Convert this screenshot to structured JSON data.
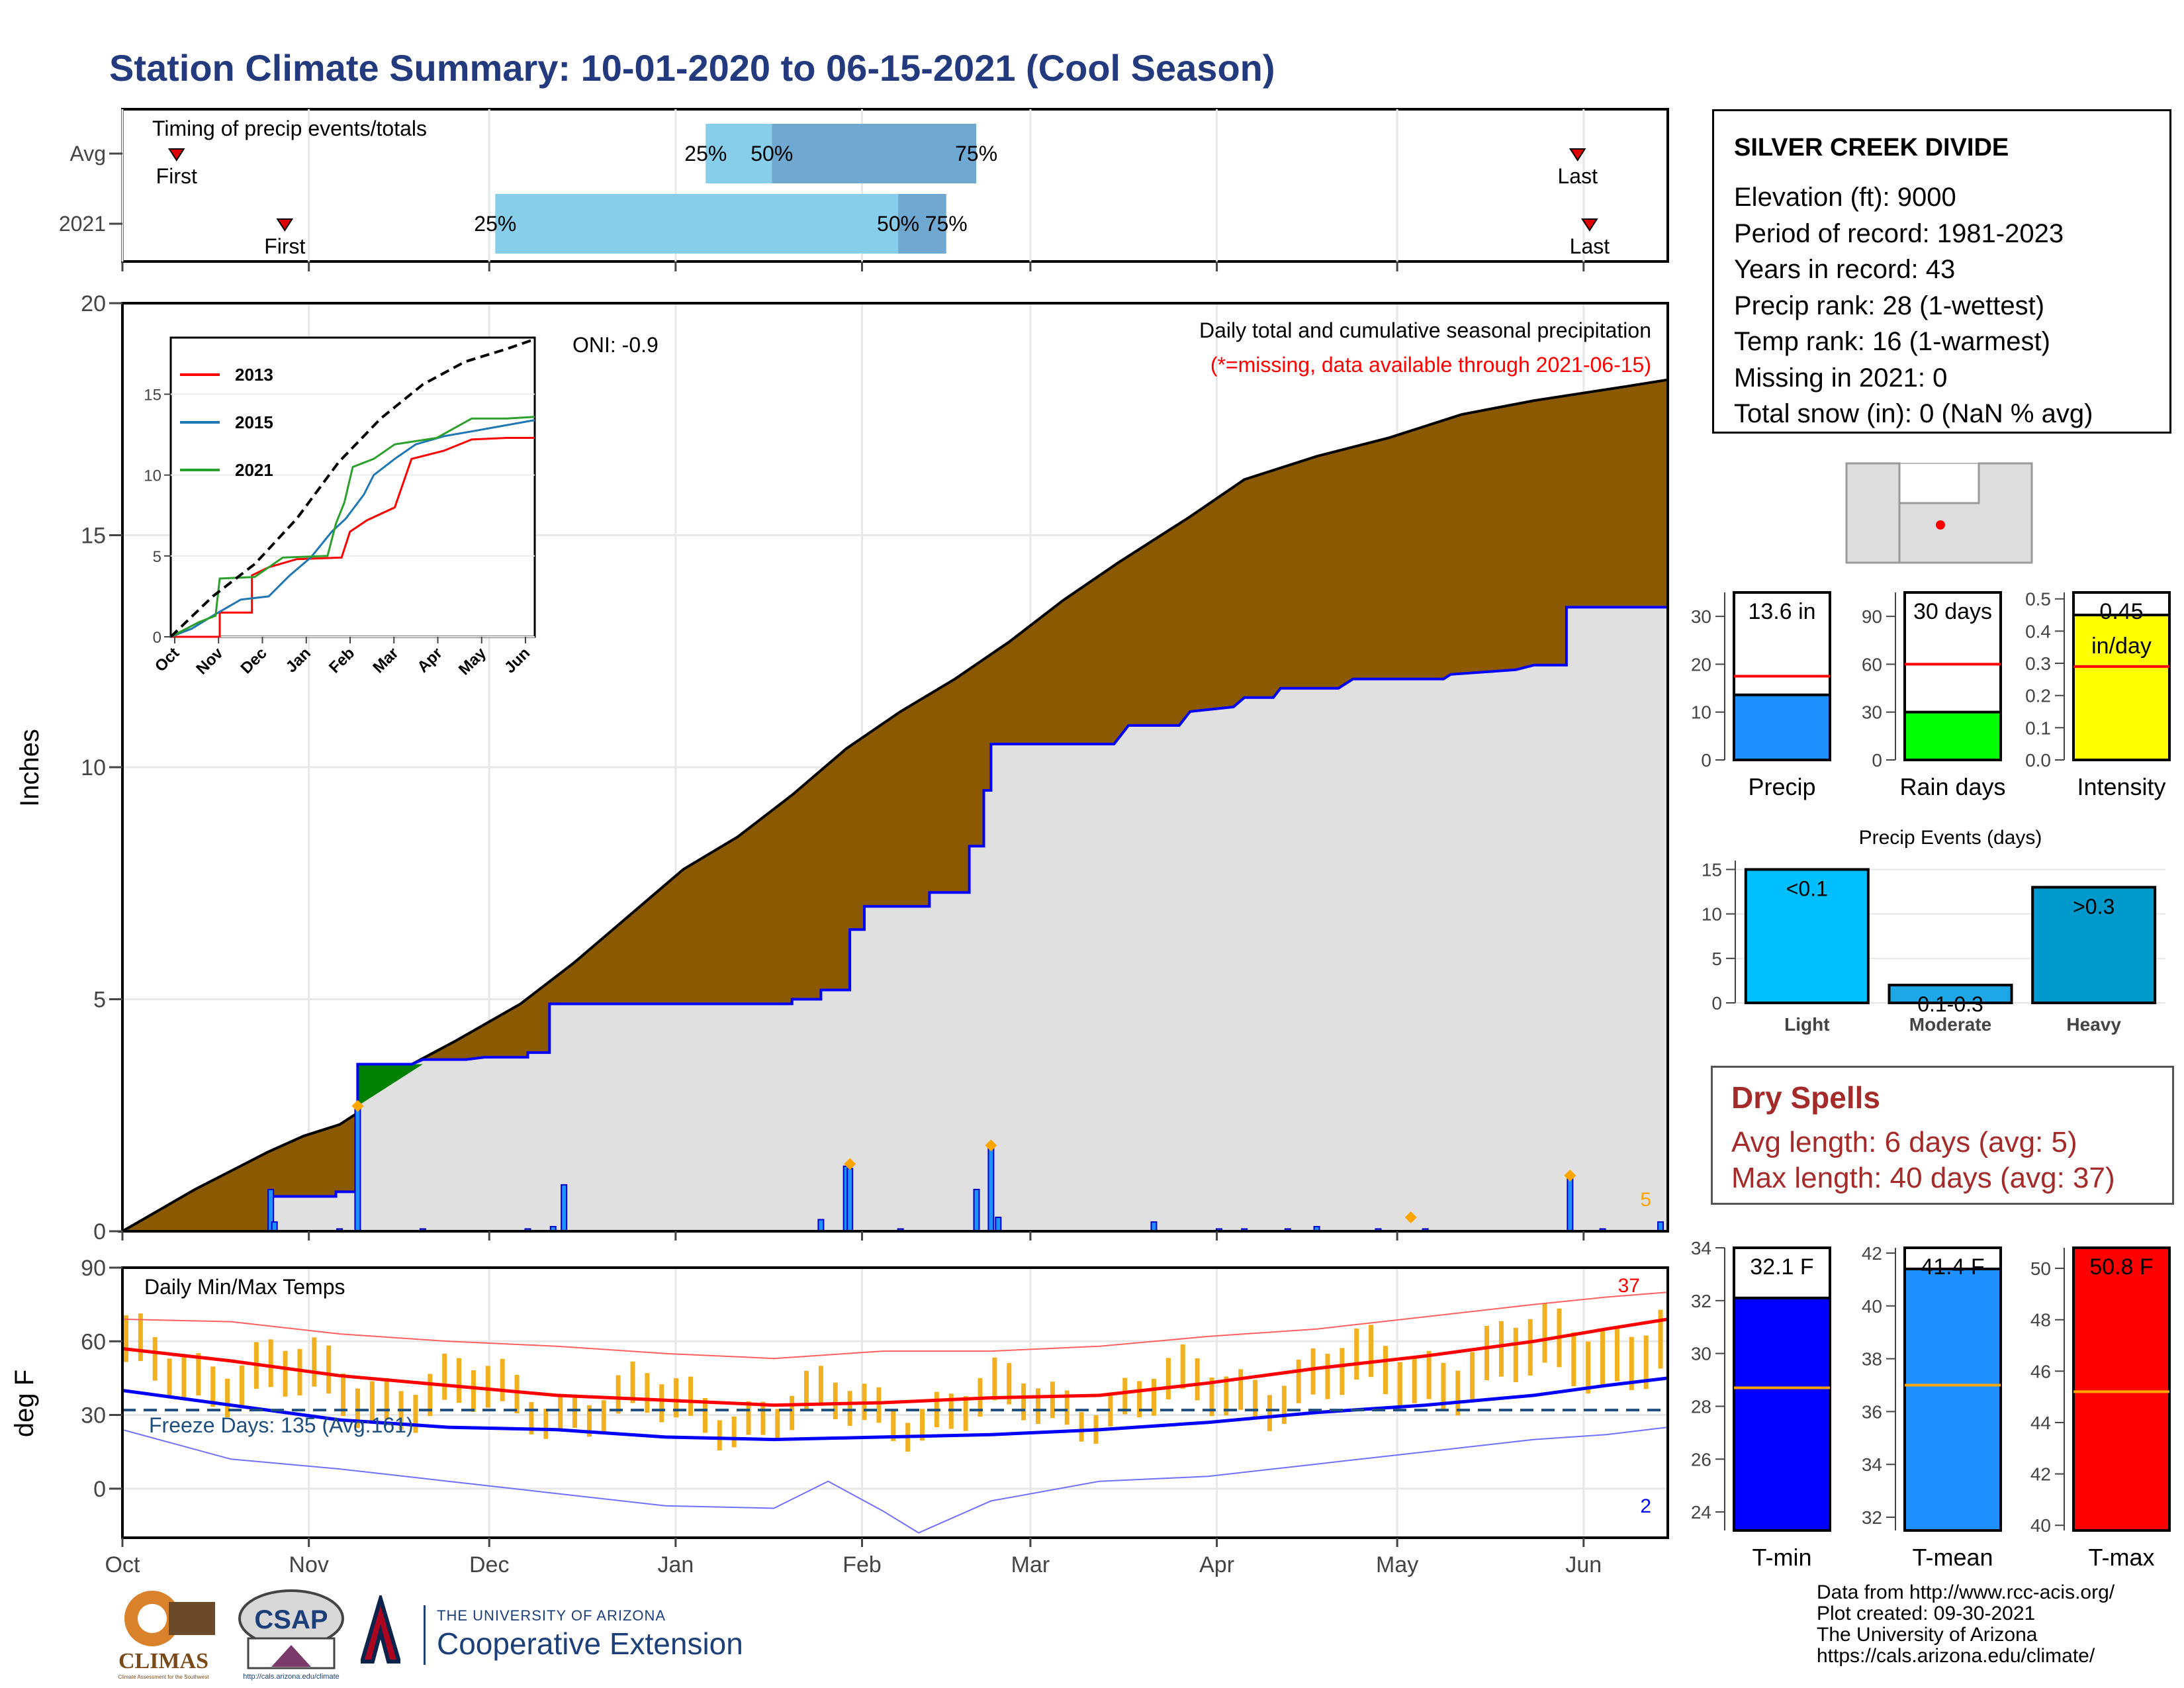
{
  "title": "Station Climate Summary: 10-01-2020 to 06-15-2021 (Cool Season)",
  "station": {
    "name": "SILVER CREEK DIVIDE",
    "lines": [
      "Elevation (ft): 9000",
      "Period of record: 1981-2023",
      "Years in record: 43",
      "Precip rank: 28 (1-wettest)",
      "Temp rank: 16 (1-warmest)",
      "Missing in 2021: 0",
      "Total snow (in): 0 (NaN % avg)"
    ]
  },
  "dry_spells": {
    "title": "Dry Spells",
    "avg_length": "Avg length: 6 days (avg: 5)",
    "max_length": "Max length: 40 days (avg: 37)"
  },
  "credits": [
    "Data from http://www.rcc-acis.org/",
    "Plot created: 09-30-2021",
    "The University of Arizona",
    "https://cals.arizona.edu/climate/"
  ],
  "logos": {
    "climas": "CLIMAS",
    "climas_sub": "Climate Assessment for the Southwest",
    "csap": "CSAP",
    "csap_url": "http://cals.arizona.edu/climate",
    "ua_small": "THE UNIVERSITY OF ARIZONA",
    "ua_big": "Cooperative Extension"
  },
  "colors": {
    "title": "#233a7e",
    "precip_fill": "#8b5a00",
    "avg_fill": "#e0e0e0",
    "avg_line": "#0000ff",
    "surplus_fill": "#008000",
    "q_light": "#87ceeb",
    "q_dark": "#6fa8d0",
    "tmax": "#ff0000",
    "tmin": "#0000ff",
    "range_bar": "#f0b020",
    "dry": "#a52a2a"
  },
  "chart_data": [
    {
      "type": "bar",
      "id": "timing",
      "panel_label": "Timing of precip events/totals",
      "x_range": [
        "10-01",
        "06-15"
      ],
      "rows": [
        {
          "name": "Avg",
          "first": "10-10",
          "q25": "01-06",
          "q50": "01-17",
          "q75": "02-20",
          "last": "05-31"
        },
        {
          "name": "2021",
          "first": "10-28",
          "q25": "12-02",
          "q50": "02-07",
          "q75": "02-15",
          "last": "06-02"
        }
      ],
      "labels": {
        "first": "First",
        "last": "Last",
        "q25": "25%",
        "q50": "50%",
        "q75": "75%"
      }
    },
    {
      "type": "area",
      "id": "precip",
      "ylabel": "Inches",
      "ylim": [
        0,
        20
      ],
      "yticks": [
        0,
        5,
        10,
        15,
        20
      ],
      "x_range": [
        "10-01",
        "06-15"
      ],
      "xticks": [
        "Oct",
        "Nov",
        "Dec",
        "Jan",
        "Feb",
        "Mar",
        "Apr",
        "May",
        "Jun"
      ],
      "annotation_oni": "ONI: -0.9",
      "annotation_title": "Daily total and cumulative seasonal precipitation",
      "annotation_missing": "(*=missing, data available through 2021-06-15)",
      "count_label": "5",
      "cumulative_2021": [
        [
          0,
          0
        ],
        [
          10,
          0.45
        ],
        [
          20,
          0.9
        ],
        [
          30,
          1.3
        ],
        [
          40,
          1.7
        ],
        [
          50,
          2.05
        ],
        [
          60,
          2.3
        ],
        [
          66,
          2.6
        ],
        [
          72,
          3.3
        ],
        [
          80,
          3.6
        ],
        [
          92,
          4.1
        ],
        [
          110,
          4.9
        ],
        [
          125,
          5.8
        ],
        [
          140,
          6.8
        ],
        [
          155,
          7.8
        ],
        [
          170,
          8.5
        ],
        [
          185,
          9.4
        ],
        [
          200,
          10.4
        ],
        [
          215,
          11.2
        ],
        [
          230,
          11.9
        ],
        [
          245,
          12.7
        ],
        [
          260,
          13.6
        ],
        [
          275,
          14.4
        ],
        [
          295,
          15.4
        ],
        [
          310,
          16.2
        ],
        [
          330,
          16.7
        ],
        [
          350,
          17.1
        ],
        [
          370,
          17.6
        ],
        [
          390,
          17.9
        ],
        [
          415,
          18.2
        ],
        [
          427,
          18.35
        ]
      ],
      "cumulative_avg": [
        [
          0,
          0
        ],
        [
          41,
          0
        ],
        [
          41,
          0.75
        ],
        [
          59,
          0.75
        ],
        [
          59,
          0.85
        ],
        [
          65,
          0.85
        ],
        [
          65,
          3.6
        ],
        [
          80,
          3.6
        ],
        [
          83,
          3.7
        ],
        [
          95,
          3.7
        ],
        [
          100,
          3.75
        ],
        [
          112,
          3.75
        ],
        [
          112,
          3.85
        ],
        [
          118,
          3.85
        ],
        [
          118,
          4.9
        ],
        [
          185,
          4.9
        ],
        [
          185,
          5.0
        ],
        [
          193,
          5.0
        ],
        [
          193,
          5.2
        ],
        [
          201,
          5.2
        ],
        [
          201,
          6.5
        ],
        [
          205,
          6.5
        ],
        [
          205,
          7.0
        ],
        [
          223,
          7.0
        ],
        [
          223,
          7.3
        ],
        [
          234,
          7.3
        ],
        [
          234,
          8.3
        ],
        [
          238,
          8.3
        ],
        [
          238,
          9.5
        ],
        [
          240,
          9.5
        ],
        [
          240,
          10.5
        ],
        [
          274,
          10.5
        ],
        [
          278,
          10.9
        ],
        [
          292,
          10.9
        ],
        [
          295,
          11.2
        ],
        [
          307,
          11.3
        ],
        [
          310,
          11.5
        ],
        [
          318,
          11.5
        ],
        [
          320,
          11.7
        ],
        [
          336,
          11.7
        ],
        [
          340,
          11.9
        ],
        [
          365,
          11.9
        ],
        [
          367,
          12.0
        ],
        [
          385,
          12.1
        ],
        [
          390,
          12.2
        ],
        [
          399,
          12.2
        ],
        [
          399,
          13.45
        ],
        [
          427,
          13.45
        ]
      ],
      "daily_bars": [
        [
          41,
          0.9
        ],
        [
          42,
          0.2
        ],
        [
          60,
          0.05
        ],
        [
          65,
          2.65
        ],
        [
          83,
          0.05
        ],
        [
          112,
          0.05
        ],
        [
          119,
          0.1
        ],
        [
          122,
          1.0
        ],
        [
          193,
          0.25
        ],
        [
          200,
          1.4
        ],
        [
          201,
          1.35
        ],
        [
          215,
          0.05
        ],
        [
          236,
          0.9
        ],
        [
          240,
          1.8
        ],
        [
          242,
          0.3
        ],
        [
          285,
          0.2
        ],
        [
          303,
          0.05
        ],
        [
          310,
          0.05
        ],
        [
          322,
          0.05
        ],
        [
          330,
          0.1
        ],
        [
          347,
          0.05
        ],
        [
          360,
          0.05
        ],
        [
          400,
          1.15
        ],
        [
          409,
          0.05
        ],
        [
          425,
          0.2
        ]
      ],
      "markers": [
        [
          65,
          2.7
        ],
        [
          201,
          1.45
        ],
        [
          240,
          1.85
        ],
        [
          356,
          0.3
        ],
        [
          400,
          1.2
        ]
      ],
      "inset": {
        "type": "line",
        "xticks": [
          "Oct",
          "Nov",
          "Dec",
          "Jan",
          "Feb",
          "Mar",
          "Apr",
          "May",
          "Jun"
        ],
        "yticks": [
          0,
          5,
          10,
          15
        ],
        "ylim": [
          0,
          18.5
        ],
        "series": [
          {
            "name": "2013",
            "color": "#ff0000",
            "values": [
              [
                0,
                0
              ],
              [
                35,
                0
              ],
              [
                35,
                1.5
              ],
              [
                58,
                1.5
              ],
              [
                58,
                3.8
              ],
              [
                70,
                4.3
              ],
              [
                90,
                4.8
              ],
              [
                122,
                4.9
              ],
              [
                128,
                6.5
              ],
              [
                140,
                7.2
              ],
              [
                160,
                8.0
              ],
              [
                172,
                11.0
              ],
              [
                195,
                11.5
              ],
              [
                215,
                12.2
              ],
              [
                240,
                12.3
              ],
              [
                260,
                12.3
              ]
            ]
          },
          {
            "name": "2015",
            "color": "#1f77b4",
            "values": [
              [
                0,
                0
              ],
              [
                15,
                0.5
              ],
              [
                30,
                1.3
              ],
              [
                50,
                2.3
              ],
              [
                70,
                2.5
              ],
              [
                85,
                3.8
              ],
              [
                100,
                4.9
              ],
              [
                115,
                6.5
              ],
              [
                125,
                7.3
              ],
              [
                138,
                8.8
              ],
              [
                145,
                10.0
              ],
              [
                160,
                11.0
              ],
              [
                175,
                11.9
              ],
              [
                195,
                12.4
              ],
              [
                215,
                12.7
              ],
              [
                260,
                13.4
              ]
            ]
          },
          {
            "name": "2021",
            "color": "#2ca02c",
            "values": [
              [
                0,
                0
              ],
              [
                20,
                0.9
              ],
              [
                32,
                1.3
              ],
              [
                35,
                3.6
              ],
              [
                60,
                3.7
              ],
              [
                80,
                4.9
              ],
              [
                112,
                5.0
              ],
              [
                118,
                7.0
              ],
              [
                124,
                8.3
              ],
              [
                130,
                10.5
              ],
              [
                145,
                11.0
              ],
              [
                160,
                11.9
              ],
              [
                190,
                12.3
              ],
              [
                215,
                13.5
              ],
              [
                240,
                13.5
              ],
              [
                260,
                13.6
              ]
            ]
          },
          {
            "name": "",
            "color": "#000000",
            "dashed": true,
            "values": [
              [
                0,
                0
              ],
              [
                30,
                2.5
              ],
              [
                60,
                4.5
              ],
              [
                90,
                7.3
              ],
              [
                120,
                10.8
              ],
              [
                150,
                13.5
              ],
              [
                180,
                15.6
              ],
              [
                210,
                17.0
              ],
              [
                240,
                17.8
              ],
              [
                260,
                18.4
              ]
            ]
          }
        ]
      }
    },
    {
      "type": "line",
      "id": "temperature",
      "ylabel": "deg F",
      "ylim": [
        -20,
        90
      ],
      "yticks": [
        0,
        30,
        60,
        90
      ],
      "panel_label": "Daily Min/Max Temps",
      "freeze_label": "Freeze Days: 135 (Avg:161)",
      "freeze_line": 32,
      "count_top": "37",
      "count_bottom": "2",
      "avg_tmax": [
        [
          0,
          57
        ],
        [
          30,
          52
        ],
        [
          60,
          46
        ],
        [
          90,
          42
        ],
        [
          120,
          38
        ],
        [
          150,
          36
        ],
        [
          180,
          34
        ],
        [
          210,
          35
        ],
        [
          240,
          37
        ],
        [
          270,
          38
        ],
        [
          300,
          43
        ],
        [
          330,
          49
        ],
        [
          360,
          54
        ],
        [
          390,
          60
        ],
        [
          410,
          65
        ],
        [
          427,
          69
        ]
      ],
      "avg_tmin": [
        [
          0,
          40
        ],
        [
          30,
          34
        ],
        [
          60,
          28
        ],
        [
          90,
          25
        ],
        [
          120,
          24
        ],
        [
          150,
          21
        ],
        [
          180,
          20
        ],
        [
          210,
          21
        ],
        [
          240,
          22
        ],
        [
          270,
          24
        ],
        [
          300,
          27
        ],
        [
          330,
          31
        ],
        [
          360,
          34
        ],
        [
          390,
          38
        ],
        [
          410,
          42
        ],
        [
          427,
          45
        ]
      ],
      "record_max": [
        [
          0,
          69
        ],
        [
          30,
          68
        ],
        [
          60,
          63
        ],
        [
          90,
          60
        ],
        [
          120,
          58
        ],
        [
          150,
          55
        ],
        [
          180,
          53
        ],
        [
          210,
          56
        ],
        [
          240,
          56
        ],
        [
          270,
          58
        ],
        [
          300,
          62
        ],
        [
          330,
          65
        ],
        [
          360,
          70
        ],
        [
          390,
          75
        ],
        [
          410,
          78
        ],
        [
          427,
          80
        ]
      ],
      "record_min": [
        [
          0,
          24
        ],
        [
          30,
          12
        ],
        [
          60,
          8
        ],
        [
          90,
          3
        ],
        [
          120,
          -2
        ],
        [
          150,
          -7
        ],
        [
          180,
          -8
        ],
        [
          195,
          3
        ],
        [
          210,
          -9
        ],
        [
          220,
          -18
        ],
        [
          240,
          -5
        ],
        [
          270,
          3
        ],
        [
          300,
          5
        ],
        [
          330,
          10
        ],
        [
          360,
          15
        ],
        [
          390,
          20
        ],
        [
          410,
          22
        ],
        [
          427,
          25
        ]
      ]
    },
    {
      "type": "bar",
      "id": "total_precip",
      "label": "13.6 in",
      "xlabel": "Precip",
      "value": 13.6,
      "avg": 17.5,
      "ylim": [
        0,
        35
      ],
      "yticks": [
        0,
        10,
        20,
        30
      ],
      "color": "#1e90ff"
    },
    {
      "type": "bar",
      "id": "rain_days",
      "label": "30 days",
      "xlabel": "Rain days",
      "value": 30,
      "avg": 60,
      "ylim": [
        0,
        105
      ],
      "yticks": [
        0,
        30,
        60,
        90
      ],
      "color": "#00ff00"
    },
    {
      "type": "bar",
      "id": "intensity",
      "label": "0.45",
      "unit_label": "in/day",
      "xlabel": "Intensity",
      "value": 0.45,
      "avg": 0.29,
      "ylim": [
        0,
        0.52
      ],
      "yticks": [
        0.0,
        0.1,
        0.2,
        0.3,
        0.4,
        0.5
      ],
      "color": "#ffff00"
    },
    {
      "type": "bar",
      "id": "precip_events",
      "title": "Precip Events (days)",
      "categories": [
        "Light",
        "Moderate",
        "Heavy"
      ],
      "values": [
        15,
        2,
        13
      ],
      "bar_labels": [
        "<0.1",
        "0.1-0.3",
        ">0.3"
      ],
      "colors": [
        "#00bfff",
        "#1ea7e6",
        "#0099cc"
      ],
      "ylim": [
        0,
        16
      ],
      "yticks": [
        0,
        5,
        10,
        15
      ]
    },
    {
      "type": "bar",
      "id": "tmin",
      "label": "32.1 F",
      "xlabel": "T-min",
      "value": 32.1,
      "avg": 28.7,
      "ylim": [
        23.3,
        34
      ],
      "yticks": [
        24,
        26,
        28,
        30,
        32,
        34
      ],
      "color": "#0000ff"
    },
    {
      "type": "bar",
      "id": "tmean",
      "label": "41.4 F",
      "xlabel": "T-mean",
      "value": 41.4,
      "avg": 37.0,
      "ylim": [
        31.5,
        42.2
      ],
      "yticks": [
        32,
        34,
        36,
        38,
        40,
        42
      ],
      "color": "#1e90ff"
    },
    {
      "type": "bar",
      "id": "tmax",
      "label": "50.8 F",
      "xlabel": "T-max",
      "value": 50.8,
      "avg": 45.2,
      "ylim": [
        39.8,
        50.8
      ],
      "yticks": [
        40,
        42,
        44,
        46,
        48,
        50
      ],
      "color": "#ff0000"
    }
  ]
}
